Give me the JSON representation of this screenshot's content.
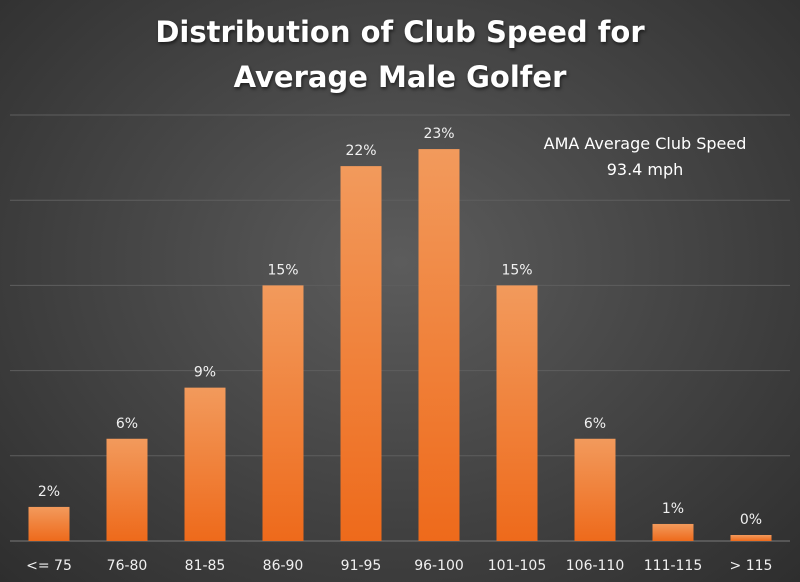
{
  "chart_data": {
    "type": "bar",
    "title": "Distribution of Club Speed for Average Male Golfer",
    "title_lines": [
      "Distribution of Club Speed for",
      "Average Male Golfer"
    ],
    "xlabel": "",
    "ylabel": "",
    "categories": [
      "<= 75",
      "76-80",
      "81-85",
      "86-90",
      "91-95",
      "96-100",
      "101-105",
      "106-110",
      "111-115",
      "> 115"
    ],
    "values": [
      2,
      6,
      9,
      15,
      22,
      23,
      15,
      6,
      1,
      0
    ],
    "data_labels": [
      "2%",
      "6%",
      "9%",
      "15%",
      "22%",
      "23%",
      "15%",
      "6%",
      "1%",
      "0%"
    ],
    "ylim": [
      0,
      25
    ],
    "gridlines": true,
    "legend": "none",
    "annotation": {
      "lines": [
        "AMA Average Club Speed",
        "93.4 mph"
      ]
    },
    "colors": {
      "bar_top": "#f29a5c",
      "bar_bottom": "#ee6a1b",
      "background": "#4a4a4a",
      "text": "#ffffff"
    }
  }
}
